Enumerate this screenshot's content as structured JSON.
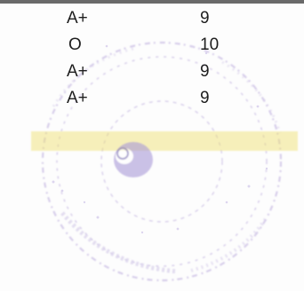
{
  "grades": [
    {
      "grade": "A+",
      "grade_point": "9"
    },
    {
      "grade": "O",
      "grade_point": "10"
    },
    {
      "grade": "A+",
      "grade_point": "9"
    },
    {
      "grade": "A+",
      "grade_point": "9"
    }
  ],
  "colors": {
    "text": "#1e1e1e",
    "stamp_ink": "#b9a9dc",
    "stamp_highlight": "#efe06a",
    "top_rule": "#6a6a6a"
  },
  "icons": {
    "stamp": "circular-seal-stamp"
  }
}
